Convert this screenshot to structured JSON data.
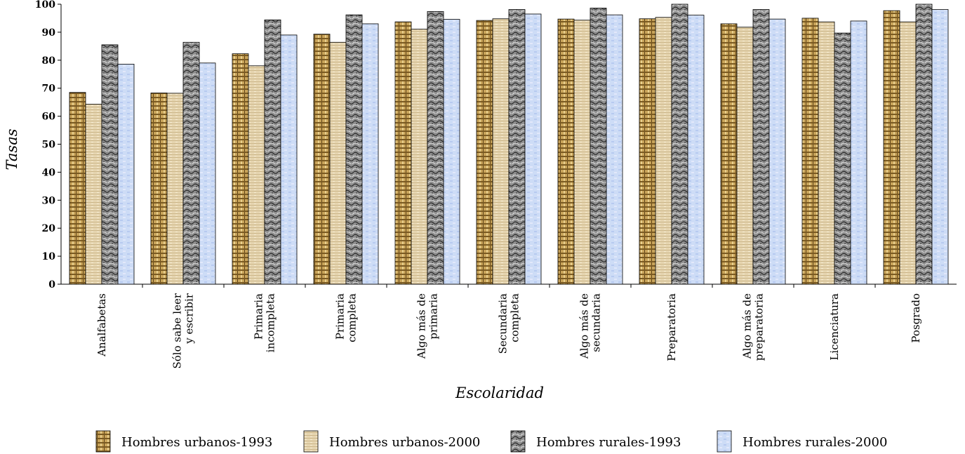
{
  "chart_data": {
    "type": "bar",
    "xlabel": "Escolaridad",
    "ylabel": "Tasas",
    "ylim": [
      0,
      100
    ],
    "yticks": [
      0,
      10,
      20,
      30,
      40,
      50,
      60,
      70,
      80,
      90,
      100
    ],
    "grid": false,
    "legend_position": "bottom",
    "categories": [
      [
        "Analfabetas"
      ],
      [
        "Sólo sabe leer",
        "y escribir"
      ],
      [
        "Primaria",
        "incompleta"
      ],
      [
        "Primaria",
        "completa"
      ],
      [
        "Algo más de",
        "primaria"
      ],
      [
        "Secundaria",
        "completa"
      ],
      [
        "Algo más de",
        "secundaria"
      ],
      [
        "Preparatoria"
      ],
      [
        "Algo más de",
        "preparatoria"
      ],
      [
        "Licenciatura"
      ],
      [
        "Posgrado"
      ]
    ],
    "series": [
      {
        "name": "Hombres urbanos-1993",
        "color": "#c9a45a",
        "pattern": "weave",
        "values": [
          68.5,
          68.3,
          82.3,
          89.3,
          93.7,
          94.2,
          94.7,
          94.8,
          93.0,
          95.0,
          97.7
        ]
      },
      {
        "name": "Hombres urbanos-2000",
        "color": "#e4d2ab",
        "pattern": "linen",
        "values": [
          64.3,
          68.2,
          78.0,
          86.4,
          91.1,
          94.8,
          94.3,
          95.3,
          91.8,
          93.7,
          93.7
        ]
      },
      {
        "name": "Hombres rurales-1993",
        "color": "#8e8e8e",
        "pattern": "marble",
        "values": [
          85.5,
          86.4,
          94.4,
          96.2,
          97.4,
          98.1,
          98.6,
          100.0,
          98.1,
          89.7,
          100.0
        ]
      },
      {
        "name": "Hombres rurales-2000",
        "color": "#c9d8f5",
        "pattern": "sky",
        "values": [
          78.6,
          79.0,
          89.0,
          93.0,
          94.6,
          96.5,
          96.2,
          96.1,
          94.7,
          94.0,
          98.1
        ]
      }
    ]
  }
}
